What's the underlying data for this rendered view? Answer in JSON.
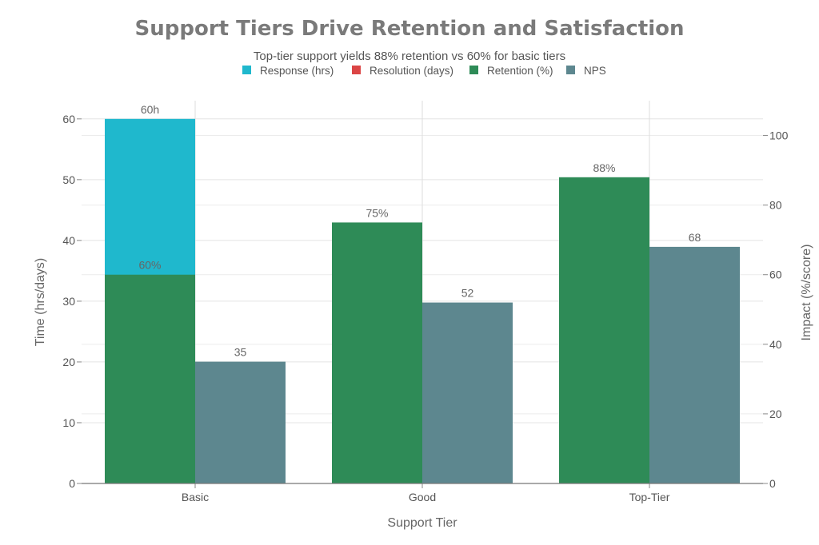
{
  "chart_data": {
    "type": "bar",
    "title": "Support Tiers Drive Retention and Satisfaction",
    "subtitle": "Top-tier support yields 88% retention vs 60% for basic tiers",
    "xlabel": "Support Tier",
    "ylabel_left": "Time (hrs/days)",
    "ylabel_right": "Impact (%/score)",
    "categories": [
      "Basic",
      "Good",
      "Top-Tier"
    ],
    "left_axis": {
      "ylim": [
        0,
        63
      ],
      "ticks": [
        0,
        10,
        20,
        30,
        40,
        50,
        60
      ]
    },
    "right_axis": {
      "ylim": [
        0,
        110
      ],
      "ticks": [
        0,
        20,
        40,
        60,
        80,
        100
      ]
    },
    "grid": true,
    "legend_position": "top",
    "series": [
      {
        "name": "Response (hrs)",
        "axis": "left",
        "color": "#1fb8cd",
        "values": [
          60,
          null,
          null
        ],
        "labels": [
          "60h",
          "",
          ""
        ]
      },
      {
        "name": "Resolution (days)",
        "axis": "left",
        "color": "#db4545",
        "values": [
          null,
          null,
          null
        ],
        "labels": [
          "",
          "",
          ""
        ]
      },
      {
        "name": "Retention (%)",
        "axis": "right",
        "color": "#2e8b57",
        "values": [
          60,
          75,
          88
        ],
        "labels": [
          "60%",
          "75%",
          "88%"
        ]
      },
      {
        "name": "NPS",
        "axis": "right",
        "color": "#5d878f",
        "values": [
          35,
          52,
          68
        ],
        "labels": [
          "35",
          "52",
          "68"
        ]
      }
    ]
  }
}
